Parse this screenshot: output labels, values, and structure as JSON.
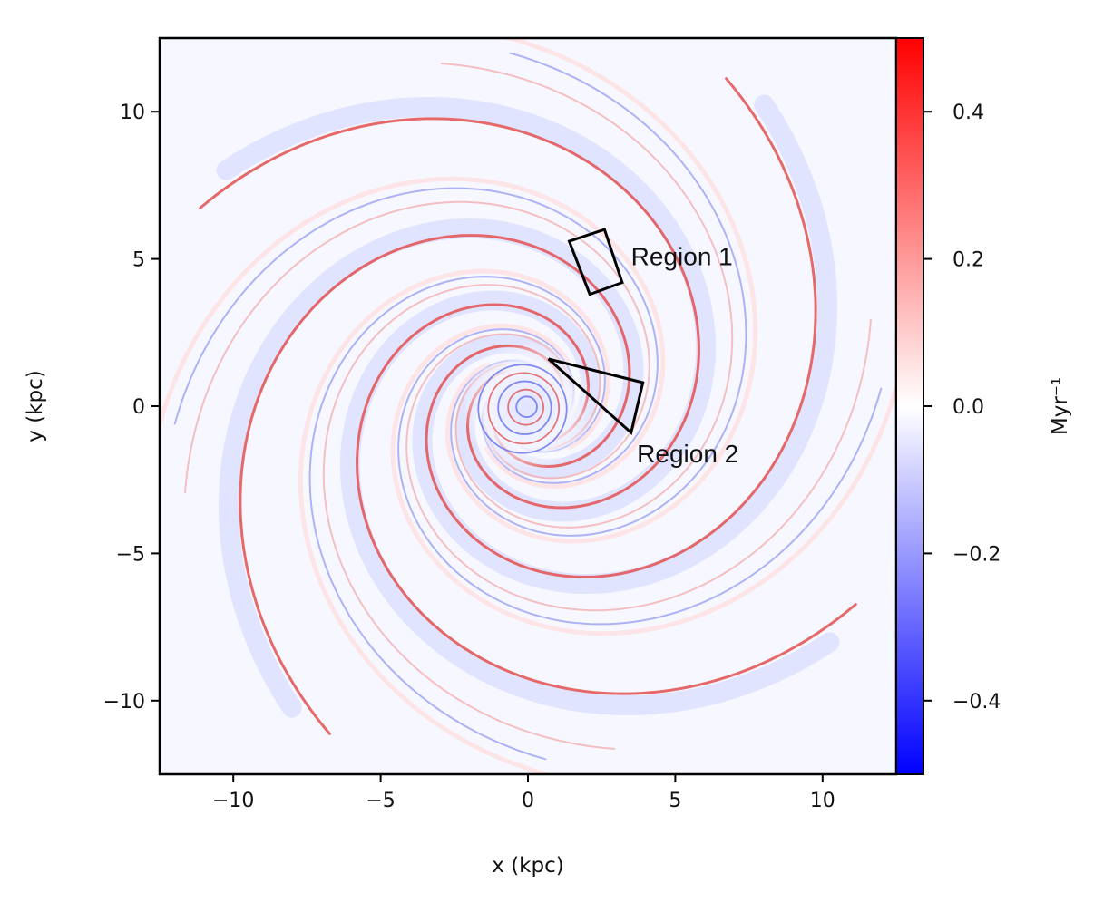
{
  "chart_data": {
    "type": "heatmap",
    "title": "",
    "xlabel": "x (kpc)",
    "ylabel": "y (kpc)",
    "xlim": [
      -12.5,
      12.5
    ],
    "ylim": [
      -12.5,
      12.5
    ],
    "xticks": [
      -10,
      -5,
      0,
      5,
      10
    ],
    "yticks": [
      -10,
      -5,
      0,
      5,
      10
    ],
    "xtick_labels": [
      "−10",
      "−5",
      "0",
      "5",
      "10"
    ],
    "ytick_labels": [
      "−10",
      "−5",
      "0",
      "5",
      "10"
    ],
    "grid": false,
    "colorbar": {
      "label": "Myr⁻¹",
      "range": [
        -0.5,
        0.5
      ],
      "ticks": [
        0.4,
        0.2,
        0.0,
        -0.2,
        -0.4
      ],
      "tick_labels": [
        "0.4",
        "0.2",
        "0.0",
        "−0.2",
        "−0.4"
      ],
      "colormap": "bwr",
      "low_color": "#0000ff",
      "mid_color": "#ffffff",
      "high_color": "#ff0000"
    },
    "annotations": [
      {
        "label": "Region 1",
        "shape": "quadrilateral",
        "vertices": [
          [
            1.4,
            5.6
          ],
          [
            2.6,
            6.0
          ],
          [
            3.2,
            4.2
          ],
          [
            2.1,
            3.8
          ]
        ],
        "label_position": [
          3.5,
          5.1
        ]
      },
      {
        "label": "Region 2",
        "shape": "triangle",
        "vertices": [
          [
            0.7,
            1.6
          ],
          [
            3.9,
            0.8
          ],
          [
            3.5,
            -0.9
          ]
        ],
        "label_position": [
          3.7,
          -1.6
        ]
      }
    ]
  }
}
